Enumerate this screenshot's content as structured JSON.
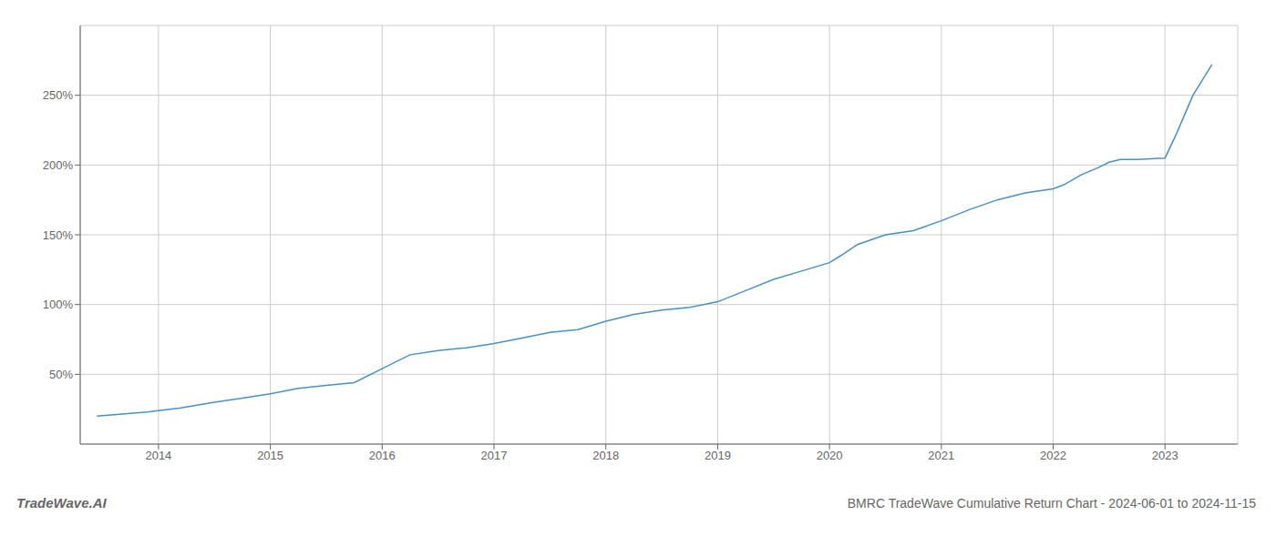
{
  "chart_data": {
    "type": "line",
    "title": "BMRC TradeWave Cumulative Return Chart - 2024-06-01 to 2024-11-15",
    "annotations": [
      "TradeWave.AI"
    ],
    "x": [
      2013.45,
      2013.6,
      2013.75,
      2013.9,
      2014.0,
      2014.2,
      2014.5,
      2014.75,
      2015.0,
      2015.25,
      2015.5,
      2015.75,
      2016.0,
      2016.25,
      2016.5,
      2016.75,
      2017.0,
      2017.25,
      2017.5,
      2017.75,
      2018.0,
      2018.1,
      2018.25,
      2018.5,
      2018.75,
      2019.0,
      2019.25,
      2019.5,
      2019.75,
      2020.0,
      2020.1,
      2020.25,
      2020.5,
      2020.75,
      2021.0,
      2021.25,
      2021.5,
      2021.75,
      2022.0,
      2022.1,
      2022.25,
      2022.4,
      2022.5,
      2022.6,
      2022.75,
      2023.0,
      2023.1,
      2023.25,
      2023.42
    ],
    "values": [
      20,
      21,
      22,
      23,
      24,
      26,
      30,
      33,
      36,
      40,
      42,
      44,
      54,
      64,
      67,
      69,
      72,
      76,
      80,
      82,
      88,
      90,
      93,
      96,
      98,
      102,
      110,
      118,
      124,
      130,
      135,
      143,
      150,
      153,
      160,
      168,
      175,
      180,
      183,
      186,
      193,
      198,
      202,
      204,
      204,
      205,
      222,
      250,
      272
    ],
    "color": "#4a90c4",
    "xlim": [
      2013.3,
      2023.65
    ],
    "xticks": [
      2014,
      2015,
      2016,
      2017,
      2018,
      2019,
      2020,
      2021,
      2022,
      2023
    ],
    "ylim": [
      0,
      300
    ],
    "yticks": [
      {
        "value": 50,
        "label": "50%"
      },
      {
        "value": 100,
        "label": "100%"
      },
      {
        "value": 150,
        "label": "150%"
      },
      {
        "value": 200,
        "label": "200%"
      },
      {
        "value": 250,
        "label": "250%"
      }
    ],
    "grid": true
  }
}
